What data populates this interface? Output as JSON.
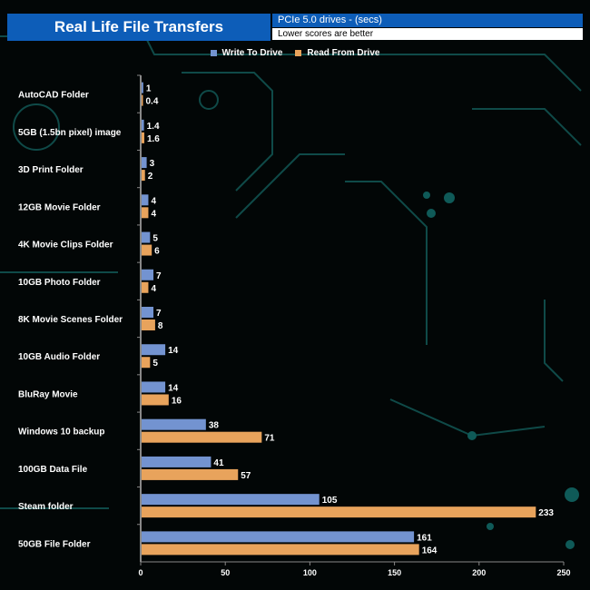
{
  "header": {
    "title": "Real Life File Transfers",
    "subtitle": "PCIe 5.0 drives - (secs)",
    "note": "Lower scores are better"
  },
  "chart_data": {
    "type": "bar",
    "orientation": "horizontal",
    "categories": [
      "AutoCAD Folder",
      "5GB (1.5bn pixel) image",
      "3D Print Folder",
      "12GB Movie Folder",
      "4K Movie Clips Folder",
      "10GB Photo Folder",
      "8K Movie Scenes Folder",
      "10GB Audio Folder",
      "BluRay Movie",
      "Windows 10 backup",
      "100GB Data File",
      "Steam folder",
      "50GB File Folder"
    ],
    "series": [
      {
        "name": "Write To  Drive",
        "color": "#7393d0",
        "values": [
          1,
          1.4,
          3,
          4,
          5,
          7,
          7,
          14,
          14,
          38,
          41,
          105,
          161
        ]
      },
      {
        "name": "Read From  Drive",
        "color": "#e8a35c",
        "values": [
          0.4,
          1.6,
          2,
          4,
          6,
          4,
          8,
          5,
          16,
          71,
          57,
          233,
          164
        ]
      }
    ],
    "xlim": [
      0,
      250
    ],
    "xticks": [
      0,
      50,
      100,
      150,
      200,
      250
    ],
    "legend": "top",
    "grid": false
  }
}
